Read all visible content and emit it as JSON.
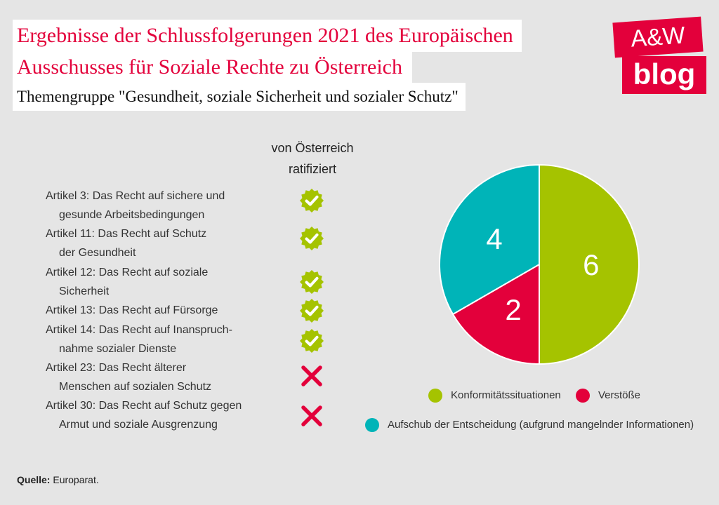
{
  "header": {
    "title_line1": "Ergebnisse der Schlussfolgerungen 2021 des Europäischen",
    "title_line2": "Ausschusses für Soziale Rechte zu Österreich",
    "subtitle": "Themengruppe \"Gesundheit, soziale Sicherheit und sozialer Schutz\""
  },
  "logo": {
    "line1": "A&W",
    "line2": "blog"
  },
  "ratified_header": {
    "line1": "von Österreich",
    "line2": "ratifiziert"
  },
  "articles": [
    {
      "line1": "Artikel 3: Das Recht auf sichere und",
      "line2": "gesunde Arbeitsbedingungen",
      "ratified": true
    },
    {
      "line1": "Artikel 11: Das Recht auf Schutz",
      "line2": "der Gesundheit",
      "ratified": true
    },
    {
      "line1": "Artikel 12: Das Recht auf soziale",
      "line2": "Sicherheit",
      "ratified": true
    },
    {
      "line1": "Artikel 13: Das Recht auf Fürsorge",
      "line2": "",
      "ratified": true
    },
    {
      "line1": "Artikel 14: Das Recht auf Inanspruch-",
      "line2": "nahme sozialer Dienste",
      "ratified": true
    },
    {
      "line1": "Artikel 23: Das Recht älterer",
      "line2": "Menschen auf sozialen Schutz",
      "ratified": false
    },
    {
      "line1": "Artikel 30: Das Recht auf Schutz gegen",
      "line2": "Armut und soziale Ausgrenzung",
      "ratified": false
    }
  ],
  "icons": {
    "ratified": "check-badge-icon",
    "not_ratified": "cross-icon"
  },
  "colors": {
    "accent": "#e3003b",
    "check": "#a5c300",
    "cross": "#e3003b"
  },
  "chart_data": {
    "type": "pie",
    "start_angle_deg": 0,
    "direction": "clockwise",
    "slices": [
      {
        "label": "Konformitätssituationen",
        "value": 6,
        "color": "#a5c300"
      },
      {
        "label": "Verstöße",
        "value": 2,
        "color": "#e3003b"
      },
      {
        "label": "Aufschub der Entscheidung (aufgrund mangelnder Informationen)",
        "value": 4,
        "color": "#00b4b8"
      }
    ],
    "legend_position": "bottom"
  },
  "source": {
    "label": "Quelle:",
    "text": " Europarat."
  }
}
